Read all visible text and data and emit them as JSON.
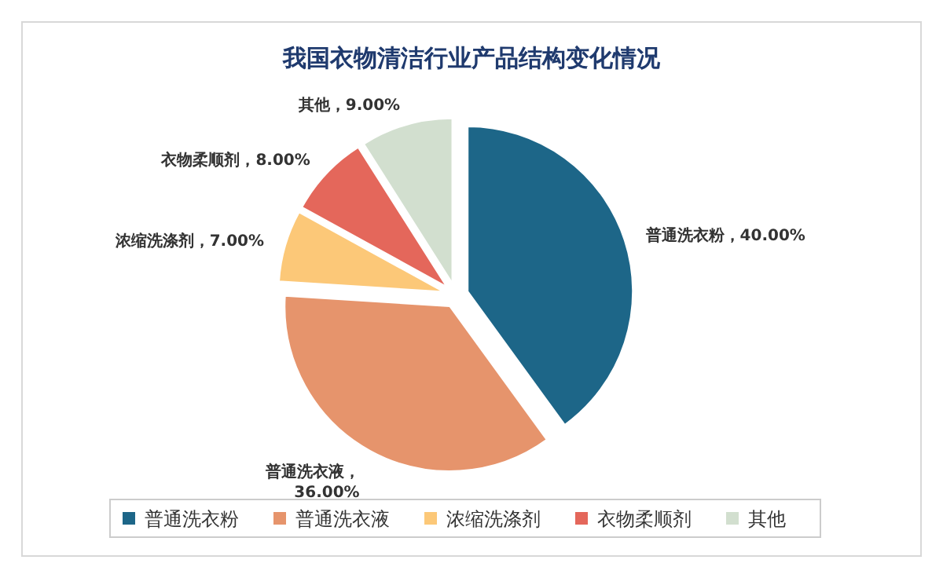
{
  "chart_data": {
    "type": "pie",
    "title": "我国衣物清洁行业产品结构变化情况",
    "categories": [
      "普通洗衣粉",
      "普通洗衣液",
      "浓缩洗涤剂",
      "衣物柔顺剂",
      "其他"
    ],
    "values": [
      40,
      36,
      7,
      8,
      9
    ],
    "colors": [
      "#1d6688",
      "#e6946c",
      "#fcc878",
      "#e4675b",
      "#d2dfcf"
    ],
    "value_labels": [
      "普通洗衣粉，40.00%",
      "普通洗衣液，36.00%",
      "浓缩洗涤剂，7.00%",
      "衣物柔顺剂，8.00%",
      "其他，9.00%"
    ],
    "legend": "bottom"
  }
}
